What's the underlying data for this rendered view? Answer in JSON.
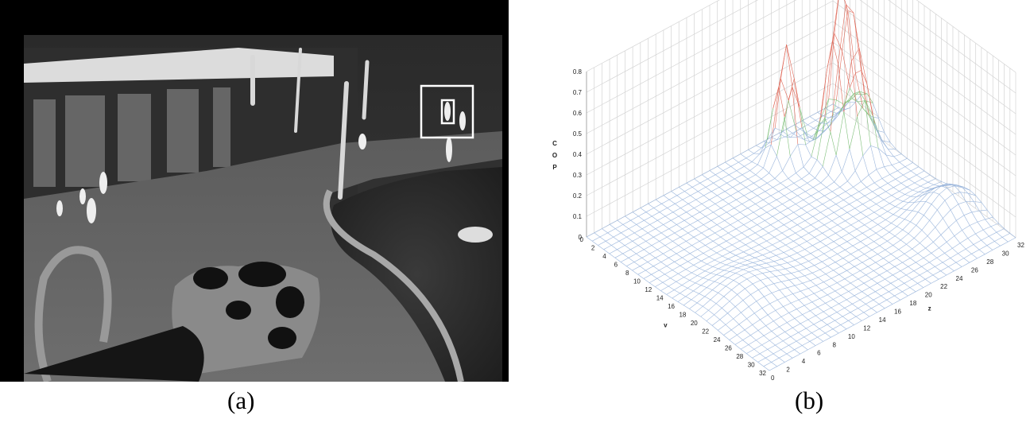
{
  "captions": {
    "a": "(a)",
    "b": "(b)"
  },
  "thermal_image": {
    "description_icon": "thermal-camera-frame",
    "detection_boxes": 2
  },
  "chart_data": {
    "type": "surface3d",
    "title": "",
    "zlabel_letters": [
      "C",
      "O",
      "P"
    ],
    "ylabel": "v",
    "xlabel": "z",
    "z_ticks": [
      "0",
      "0.1",
      "0.2",
      "0.3",
      "0.4",
      "0.5",
      "0.6",
      "0.7",
      "0.8"
    ],
    "v_ticks": [
      "0",
      "2",
      "4",
      "6",
      "8",
      "10",
      "12",
      "14",
      "16",
      "18",
      "20",
      "22",
      "24",
      "26",
      "28",
      "30",
      "32"
    ],
    "z_axis_ticks": [
      "0",
      "2",
      "4",
      "6",
      "8",
      "10",
      "12",
      "14",
      "16",
      "18",
      "20",
      "22",
      "24",
      "26",
      "28",
      "30",
      "32"
    ],
    "zlim": [
      0,
      0.8
    ],
    "grid_size": 33,
    "grid": true,
    "peaks": [
      {
        "v": 8,
        "z": 27,
        "cop": 0.74,
        "spread": 1.3
      },
      {
        "v": 4,
        "z": 23,
        "cop": 0.55,
        "spread": 1.1
      },
      {
        "v": 10,
        "z": 28,
        "cop": 0.38,
        "spread": 1.3
      },
      {
        "v": 6,
        "z": 31,
        "cop": 0.2,
        "spread": 1.8
      },
      {
        "v": 24,
        "z": 29,
        "cop": 0.14,
        "spread": 2.5
      },
      {
        "v": 20,
        "z": 6,
        "cop": 0.08,
        "spread": 3.5
      }
    ],
    "colors": {
      "low": "#9bb6dc",
      "mid": "#7fc07a",
      "high": "#e06a5a",
      "grid": "#d4d4d4",
      "axis_text": "#222222"
    }
  }
}
